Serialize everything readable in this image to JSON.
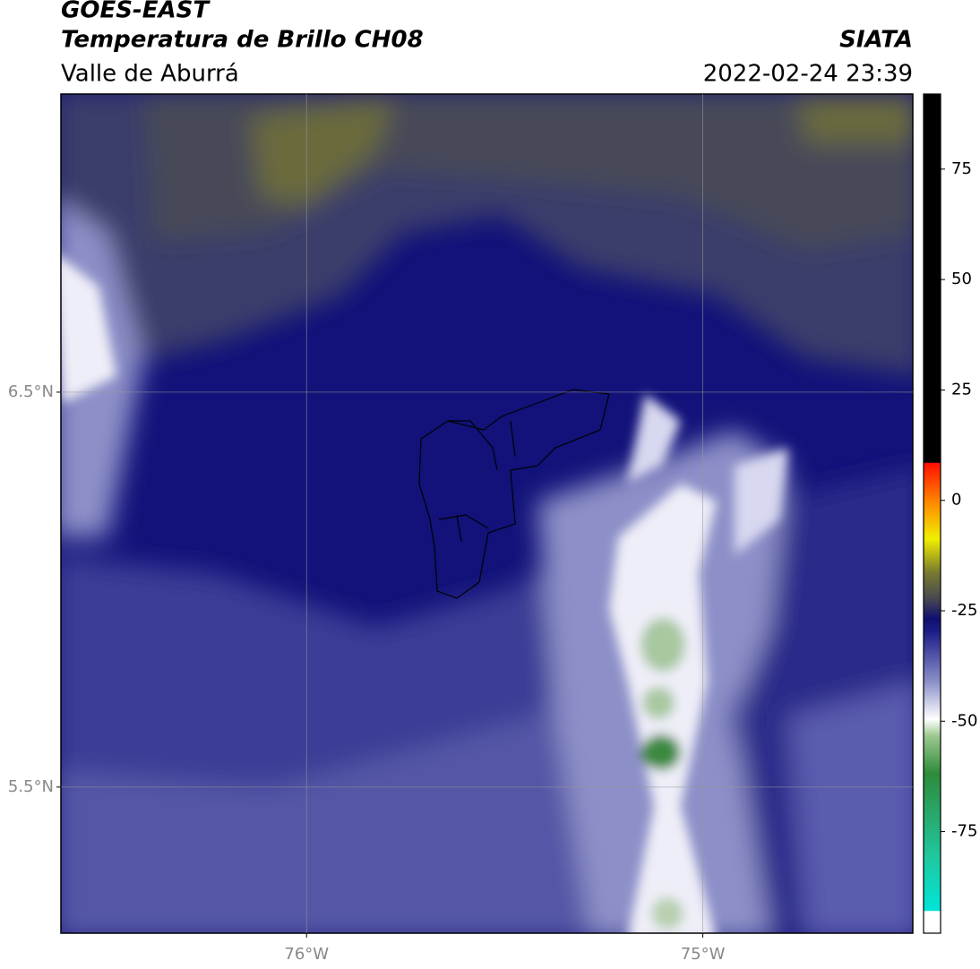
{
  "header": {
    "title": "GOES-EAST",
    "subtitle": "Temperatura de Brillo CH08",
    "region": "Valle de Aburrá",
    "source": "SIATA",
    "datetime": "2022-02-24 23:39"
  },
  "map": {
    "xlim": [
      -76.62,
      -74.47
    ],
    "ylim": [
      5.13,
      7.255
    ],
    "xticks": [
      {
        "value": -76,
        "label": "76°W"
      },
      {
        "value": -75,
        "label": "75°W"
      }
    ],
    "yticks": [
      {
        "value": 6.5,
        "label": "6.5°N"
      },
      {
        "value": 5.5,
        "label": "5.5°N"
      }
    ],
    "grid": true
  },
  "colorbar": {
    "lim": [
      -98,
      92
    ],
    "ticks": [
      75,
      50,
      25,
      0,
      -25,
      -50,
      -75
    ]
  }
}
